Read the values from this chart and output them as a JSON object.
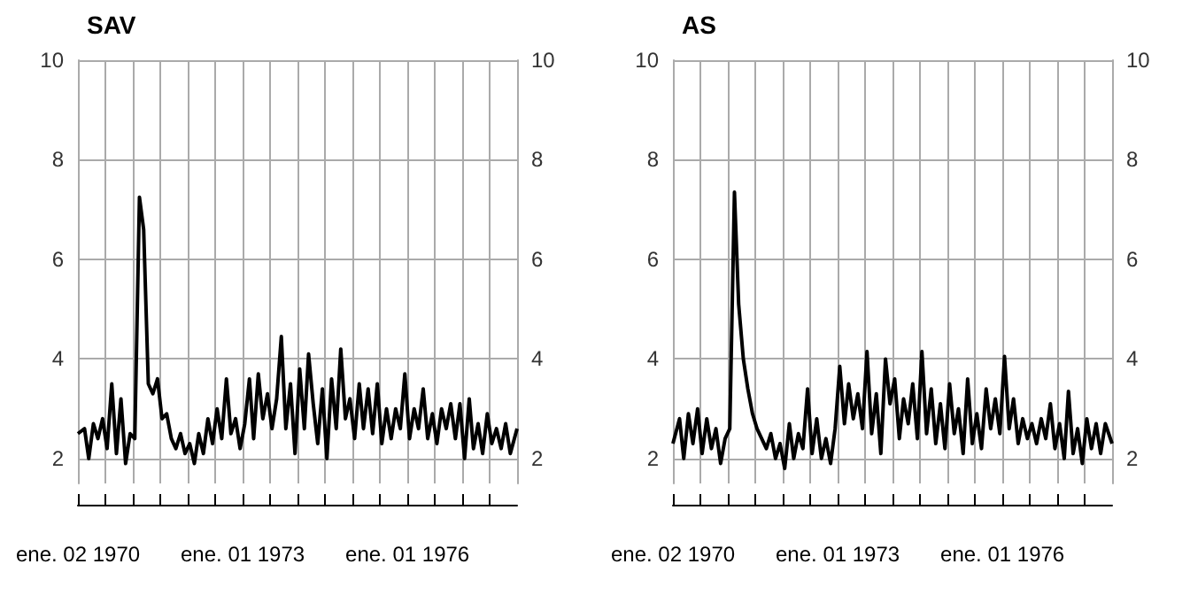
{
  "chart_data": [
    {
      "type": "line",
      "title": "SAV",
      "x": [
        "1970-01-02",
        "1970-02-15",
        "1970-03-15",
        "1970-04-15",
        "1970-05-15",
        "1970-06-15",
        "1970-07-15",
        "1970-08-15",
        "1970-09-15",
        "1970-10-15",
        "1970-11-15",
        "1970-12-15",
        "1971-01-15",
        "1971-02-15",
        "1971-03-15",
        "1971-04-15",
        "1971-05-15",
        "1971-06-15",
        "1971-07-15",
        "1971-08-15",
        "1971-09-15",
        "1971-10-15",
        "1971-11-15",
        "1971-12-15",
        "1972-01-15",
        "1972-02-15",
        "1972-03-15",
        "1972-04-15",
        "1972-05-15",
        "1972-06-15",
        "1972-07-15",
        "1972-08-15",
        "1972-09-15",
        "1972-10-15",
        "1972-11-15",
        "1972-12-15",
        "1973-01-15",
        "1973-02-15",
        "1973-03-15",
        "1973-04-15",
        "1973-05-15",
        "1973-06-15",
        "1973-07-15",
        "1973-08-15",
        "1973-09-15",
        "1973-10-15",
        "1973-11-15",
        "1973-12-15",
        "1974-01-15",
        "1974-02-15",
        "1974-03-15",
        "1974-04-15",
        "1974-05-15",
        "1974-06-15",
        "1974-07-15",
        "1974-08-15",
        "1974-09-15",
        "1974-10-15",
        "1974-11-15",
        "1974-12-15",
        "1975-01-15",
        "1975-02-15",
        "1975-03-15",
        "1975-04-15",
        "1975-05-15",
        "1975-06-15",
        "1975-07-15",
        "1975-08-15",
        "1975-09-15",
        "1975-10-15",
        "1975-11-15",
        "1975-12-15",
        "1976-01-15",
        "1976-02-15",
        "1976-03-15",
        "1976-04-15",
        "1976-05-15",
        "1976-06-15",
        "1976-07-15",
        "1976-08-15",
        "1976-09-15",
        "1976-10-15",
        "1976-11-15",
        "1976-12-15",
        "1977-01-15",
        "1977-02-15",
        "1977-03-15",
        "1977-04-15",
        "1977-05-15",
        "1977-06-15",
        "1977-07-15",
        "1977-08-15",
        "1977-09-15",
        "1977-10-15",
        "1977-11-15",
        "1977-12-30"
      ],
      "series": [
        {
          "color": "#000000",
          "values": [
            2.5,
            2.6,
            2.0,
            2.7,
            2.4,
            2.8,
            2.2,
            3.5,
            2.1,
            3.2,
            1.9,
            2.5,
            2.4,
            7.25,
            6.6,
            3.5,
            3.3,
            3.6,
            2.8,
            2.9,
            2.4,
            2.2,
            2.5,
            2.1,
            2.3,
            1.9,
            2.5,
            2.1,
            2.8,
            2.3,
            3.0,
            2.4,
            3.6,
            2.5,
            2.8,
            2.2,
            2.7,
            3.6,
            2.4,
            3.7,
            2.8,
            3.3,
            2.6,
            3.2,
            4.45,
            2.6,
            3.5,
            2.1,
            3.8,
            2.6,
            4.1,
            3.1,
            2.3,
            3.4,
            2.0,
            3.6,
            2.6,
            4.2,
            2.8,
            3.2,
            2.4,
            3.5,
            2.6,
            3.4,
            2.5,
            3.5,
            2.3,
            3.0,
            2.4,
            3.0,
            2.6,
            3.7,
            2.4,
            3.0,
            2.6,
            3.4,
            2.4,
            2.9,
            2.3,
            3.0,
            2.6,
            3.1,
            2.4,
            3.1,
            2.0,
            3.2,
            2.2,
            2.7,
            2.1,
            2.9,
            2.3,
            2.6,
            2.2,
            2.7,
            2.1,
            2.6
          ]
        }
      ],
      "xlim": [
        "1970-01-02",
        "1977-12-30"
      ],
      "xticks": [
        {
          "value": "1970-01-02",
          "label": "ene. 02 1970"
        },
        {
          "value": "1970-07-01",
          "label": null
        },
        {
          "value": "1971-01-01",
          "label": null
        },
        {
          "value": "1971-07-01",
          "label": null
        },
        {
          "value": "1972-01-01",
          "label": null
        },
        {
          "value": "1972-07-01",
          "label": null
        },
        {
          "value": "1973-01-01",
          "label": "ene. 01 1973"
        },
        {
          "value": "1973-07-01",
          "label": null
        },
        {
          "value": "1974-01-01",
          "label": null
        },
        {
          "value": "1974-07-01",
          "label": null
        },
        {
          "value": "1975-01-01",
          "label": null
        },
        {
          "value": "1975-07-01",
          "label": null
        },
        {
          "value": "1976-01-01",
          "label": "ene. 01 1976"
        },
        {
          "value": "1976-07-01",
          "label": null
        },
        {
          "value": "1977-01-01",
          "label": null
        },
        {
          "value": "1977-07-01",
          "label": null
        }
      ],
      "ylim": [
        1.5,
        10
      ],
      "yticks": [
        2,
        4,
        6,
        8,
        10
      ],
      "y2lim": [
        1.5,
        10
      ],
      "y2ticks": [
        2,
        4,
        6,
        8,
        10
      ],
      "grid": true
    },
    {
      "type": "line",
      "title": "AS",
      "x": [
        "1970-01-02",
        "1970-02-15",
        "1970-03-15",
        "1970-04-15",
        "1970-05-15",
        "1970-06-15",
        "1970-07-15",
        "1970-08-15",
        "1970-09-15",
        "1970-10-15",
        "1970-11-15",
        "1970-12-15",
        "1971-01-15",
        "1971-02-15",
        "1971-03-15",
        "1971-04-15",
        "1971-05-15",
        "1971-06-15",
        "1971-07-15",
        "1971-08-15",
        "1971-09-15",
        "1971-10-15",
        "1971-11-15",
        "1971-12-15",
        "1972-01-15",
        "1972-02-15",
        "1972-03-15",
        "1972-04-15",
        "1972-05-15",
        "1972-06-15",
        "1972-07-15",
        "1972-08-15",
        "1972-09-15",
        "1972-10-15",
        "1972-11-15",
        "1972-12-15",
        "1973-01-15",
        "1973-02-15",
        "1973-03-15",
        "1973-04-15",
        "1973-05-15",
        "1973-06-15",
        "1973-07-15",
        "1973-08-15",
        "1973-09-15",
        "1973-10-15",
        "1973-11-15",
        "1973-12-15",
        "1974-01-15",
        "1974-02-15",
        "1974-03-15",
        "1974-04-15",
        "1974-05-15",
        "1974-06-15",
        "1974-07-15",
        "1974-08-15",
        "1974-09-15",
        "1974-10-15",
        "1974-11-15",
        "1974-12-15",
        "1975-01-15",
        "1975-02-15",
        "1975-03-15",
        "1975-04-15",
        "1975-05-15",
        "1975-06-15",
        "1975-07-15",
        "1975-08-15",
        "1975-09-15",
        "1975-10-15",
        "1975-11-15",
        "1975-12-15",
        "1976-01-15",
        "1976-02-15",
        "1976-03-15",
        "1976-04-15",
        "1976-05-15",
        "1976-06-15",
        "1976-07-15",
        "1976-08-15",
        "1976-09-15",
        "1976-10-15",
        "1976-11-15",
        "1976-12-15",
        "1977-01-15",
        "1977-02-15",
        "1977-03-15",
        "1977-04-15",
        "1977-05-15",
        "1977-06-15",
        "1977-07-15",
        "1977-08-15",
        "1977-09-15",
        "1977-10-15",
        "1977-11-15",
        "1977-12-30"
      ],
      "series": [
        {
          "color": "#000000",
          "values": [
            2.3,
            2.8,
            2.0,
            2.9,
            2.3,
            3.0,
            2.1,
            2.8,
            2.2,
            2.6,
            1.9,
            2.4,
            2.6,
            7.35,
            5.1,
            4.0,
            3.4,
            2.9,
            2.6,
            2.4,
            2.2,
            2.5,
            2.0,
            2.3,
            1.8,
            2.7,
            2.0,
            2.5,
            2.2,
            3.4,
            2.1,
            2.8,
            2.0,
            2.4,
            1.9,
            2.6,
            3.85,
            2.7,
            3.5,
            2.8,
            3.3,
            2.6,
            4.15,
            2.5,
            3.3,
            2.1,
            4.0,
            3.1,
            3.6,
            2.4,
            3.2,
            2.7,
            3.5,
            2.4,
            4.15,
            2.5,
            3.4,
            2.3,
            3.1,
            2.2,
            3.5,
            2.5,
            3.0,
            2.1,
            3.6,
            2.3,
            2.9,
            2.2,
            3.4,
            2.6,
            3.2,
            2.5,
            4.05,
            2.6,
            3.2,
            2.3,
            2.8,
            2.4,
            2.7,
            2.3,
            2.8,
            2.4,
            3.1,
            2.2,
            2.7,
            2.0,
            3.35,
            2.1,
            2.6,
            1.9,
            2.8,
            2.2,
            2.7,
            2.1,
            2.7,
            2.3
          ]
        }
      ],
      "xlim": [
        "1970-01-02",
        "1977-12-30"
      ],
      "xticks": [
        {
          "value": "1970-01-02",
          "label": "ene. 02 1970"
        },
        {
          "value": "1970-07-01",
          "label": null
        },
        {
          "value": "1971-01-01",
          "label": null
        },
        {
          "value": "1971-07-01",
          "label": null
        },
        {
          "value": "1972-01-01",
          "label": null
        },
        {
          "value": "1972-07-01",
          "label": null
        },
        {
          "value": "1973-01-01",
          "label": "ene. 01 1973"
        },
        {
          "value": "1973-07-01",
          "label": null
        },
        {
          "value": "1974-01-01",
          "label": null
        },
        {
          "value": "1974-07-01",
          "label": null
        },
        {
          "value": "1975-01-01",
          "label": null
        },
        {
          "value": "1975-07-01",
          "label": null
        },
        {
          "value": "1976-01-01",
          "label": "ene. 01 1976"
        },
        {
          "value": "1976-07-01",
          "label": null
        },
        {
          "value": "1977-01-01",
          "label": null
        },
        {
          "value": "1977-07-01",
          "label": null
        }
      ],
      "ylim": [
        1.5,
        10
      ],
      "yticks": [
        2,
        4,
        6,
        8,
        10
      ],
      "y2lim": [
        1.5,
        10
      ],
      "y2ticks": [
        2,
        4,
        6,
        8,
        10
      ],
      "grid": true
    }
  ]
}
